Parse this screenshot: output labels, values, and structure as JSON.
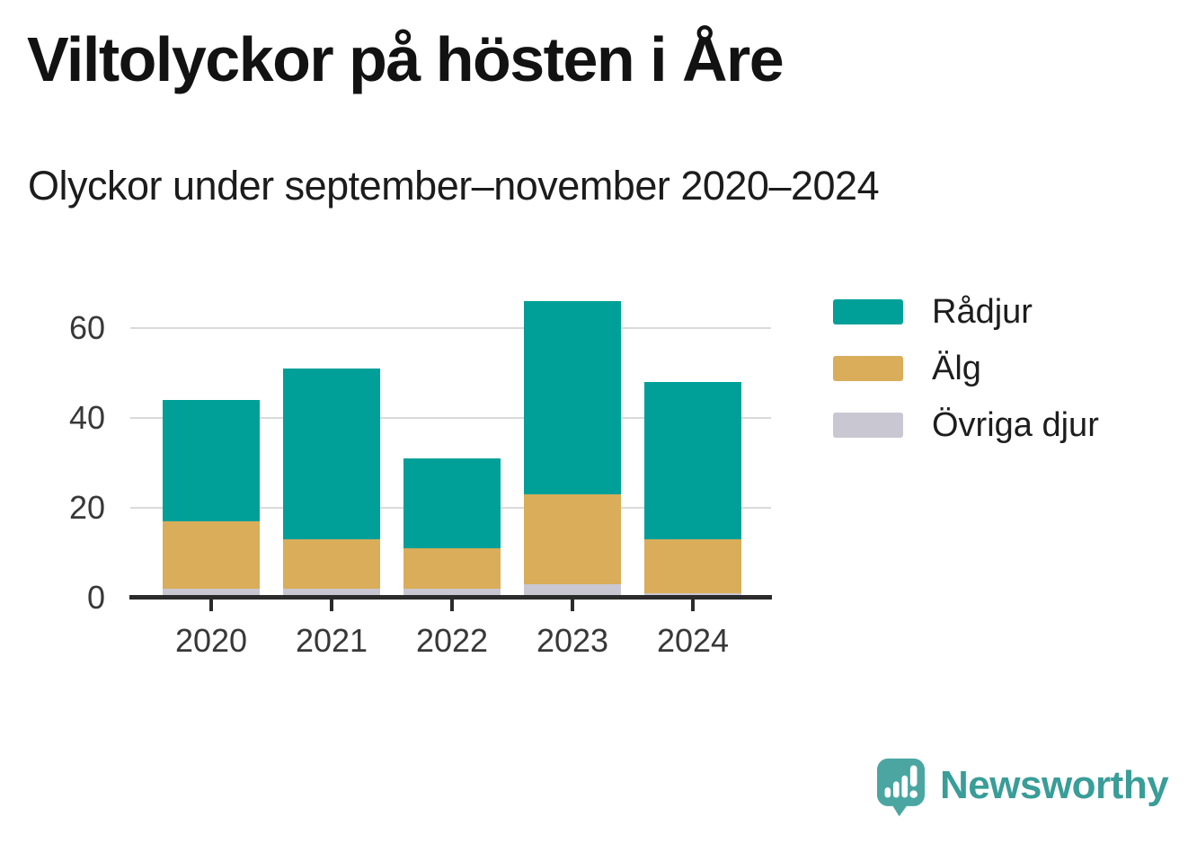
{
  "header": {
    "title": "Viltolyckor på hösten i Åre",
    "subtitle": "Olyckor under september–november 2020–2024"
  },
  "chart_data": {
    "type": "bar",
    "stacked": true,
    "title": "Viltolyckor på hösten i Åre",
    "subtitle": "Olyckor under september–november 2020–2024",
    "categories": [
      "2020",
      "2021",
      "2022",
      "2023",
      "2024"
    ],
    "series": [
      {
        "name": "Rådjur",
        "color": "#00a099",
        "values": [
          27,
          38,
          20,
          43,
          35
        ]
      },
      {
        "name": "Älg",
        "color": "#d9ad59",
        "values": [
          15,
          11,
          9,
          20,
          12
        ]
      },
      {
        "name": "Övriga djur",
        "color": "#c9c8d2",
        "values": [
          2,
          2,
          2,
          3,
          1
        ]
      }
    ],
    "stack_order_bottom_to_top": [
      "Övriga djur",
      "Älg",
      "Rådjur"
    ],
    "totals": [
      44,
      51,
      31,
      66,
      48
    ],
    "yticks": [
      0,
      20,
      40,
      60
    ],
    "ylim": [
      0,
      68
    ],
    "grid": "horizontal",
    "legend_position": "right",
    "xlabel": "",
    "ylabel": ""
  },
  "colors": {
    "axis_line": "#2b2b2b",
    "gridline": "#dadada",
    "axis_text": "#383838",
    "title_text": "#121212"
  },
  "brand": {
    "name": "Newsworthy",
    "wordmark_color": "#399d98",
    "icon_color": "#4ba6a2"
  }
}
